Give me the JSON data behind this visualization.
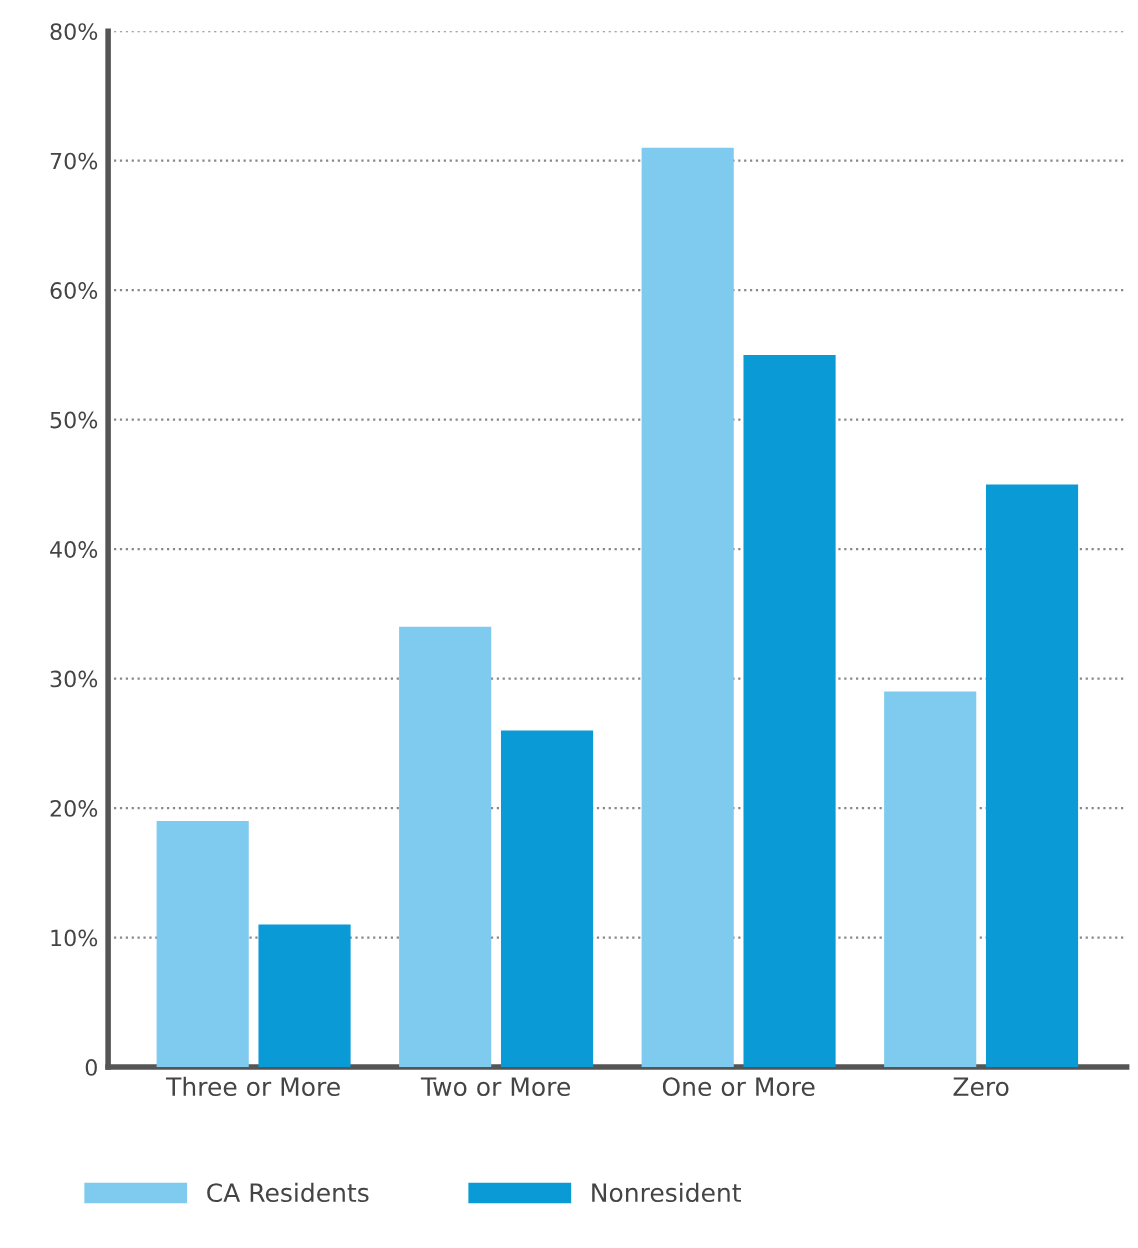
{
  "chart_data": {
    "type": "bar",
    "categories": [
      "Three or More",
      "Two or More",
      "One or More",
      "Zero"
    ],
    "series": [
      {
        "name": "CA Residents",
        "color": "#7fcaef",
        "values": [
          19,
          34,
          71,
          29
        ]
      },
      {
        "name": "Nonresident",
        "color": "#0a9ad6",
        "values": [
          11,
          26,
          55,
          45
        ]
      }
    ],
    "ylim": [
      0,
      80
    ],
    "yticks": [
      0,
      {
        "value": 10,
        "label": "10%"
      },
      {
        "value": 20,
        "label": "20%"
      },
      {
        "value": 30,
        "label": "30%"
      },
      {
        "value": 40,
        "label": "40%"
      },
      {
        "value": 50,
        "label": "50%"
      },
      {
        "value": 60,
        "label": "60%"
      },
      {
        "value": 70,
        "label": "70%"
      },
      {
        "value": 80,
        "label": "80%"
      }
    ],
    "grid": "y",
    "legend": "bottom"
  }
}
